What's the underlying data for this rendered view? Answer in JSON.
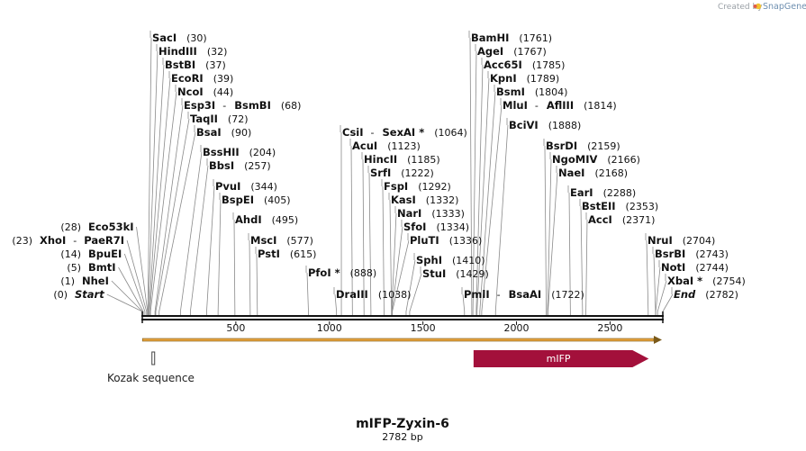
{
  "credit": {
    "prefix": "Created by",
    "brand": "SnapGene"
  },
  "map": {
    "title": "mIFP-Zyxin-6",
    "length_label": "2782 bp",
    "total_bp": 2782,
    "ticks": [
      500,
      1000,
      1500,
      2000,
      2500
    ]
  },
  "features": {
    "orf": {
      "start": 1,
      "end": 2782,
      "color": "#e8a33d"
    },
    "mifp": {
      "name": "mIFP",
      "start": 1785,
      "end": 2745,
      "color": "#a3103b"
    },
    "kozak": {
      "name": "Kozak sequence",
      "start": 42,
      "end": 50
    }
  },
  "sites_left": [
    {
      "name": "Start",
      "pos": 0,
      "italic": true
    },
    {
      "name": "NheI",
      "pos": 1
    },
    {
      "name": "BmtI",
      "pos": 5
    },
    {
      "name": "BpuEI",
      "pos": 14
    },
    {
      "name": "XhoI",
      "name2": "PaeR7I",
      "pos": 23
    },
    {
      "name": "Eco53kI",
      "pos": 28
    }
  ],
  "sites_right": [
    {
      "name": "SacI",
      "pos": 30
    },
    {
      "name": "HindIII",
      "pos": 32
    },
    {
      "name": "BstBI",
      "pos": 37
    },
    {
      "name": "EcoRI",
      "pos": 39
    },
    {
      "name": "NcoI",
      "pos": 44
    },
    {
      "name": "Esp3I",
      "name2": "BsmBI",
      "pos": 68
    },
    {
      "name": "TaqII",
      "pos": 72
    },
    {
      "name": "BsaI",
      "pos": 90
    },
    {
      "name": "BssHII",
      "pos": 204
    },
    {
      "name": "BbsI",
      "pos": 257
    },
    {
      "name": "PvuI",
      "pos": 344
    },
    {
      "name": "BspEI",
      "pos": 405
    },
    {
      "name": "AhdI",
      "pos": 495
    },
    {
      "name": "MscI",
      "pos": 577
    },
    {
      "name": "PstI",
      "pos": 615
    },
    {
      "name": "PfoI *",
      "pos": 888
    },
    {
      "name": "DraIII",
      "pos": 1038
    },
    {
      "name": "CsiI",
      "name2": "SexAI *",
      "pos": 1064
    },
    {
      "name": "AcuI",
      "pos": 1123
    },
    {
      "name": "HincII",
      "pos": 1185
    },
    {
      "name": "SrfI",
      "pos": 1222
    },
    {
      "name": "FspI",
      "pos": 1292
    },
    {
      "name": "KasI",
      "pos": 1332
    },
    {
      "name": "NarI",
      "pos": 1333
    },
    {
      "name": "SfoI",
      "pos": 1334
    },
    {
      "name": "PluTI",
      "pos": 1336
    },
    {
      "name": "SphI",
      "pos": 1410
    },
    {
      "name": "StuI",
      "pos": 1429
    },
    {
      "name": "PmlI",
      "name2": "BsaAI",
      "pos": 1722
    },
    {
      "name": "BamHI",
      "pos": 1761
    },
    {
      "name": "AgeI",
      "pos": 1767
    },
    {
      "name": "Acc65I",
      "pos": 1785
    },
    {
      "name": "KpnI",
      "pos": 1789
    },
    {
      "name": "BsmI",
      "pos": 1804
    },
    {
      "name": "MluI",
      "name2": "AflIII",
      "pos": 1814
    },
    {
      "name": "BciVI",
      "pos": 1888
    },
    {
      "name": "BsrDI",
      "pos": 2159
    },
    {
      "name": "NgoMIV",
      "pos": 2166
    },
    {
      "name": "NaeI",
      "pos": 2168
    },
    {
      "name": "EarI",
      "pos": 2288
    },
    {
      "name": "BstEII",
      "pos": 2353
    },
    {
      "name": "AccI",
      "pos": 2371
    },
    {
      "name": "NruI",
      "pos": 2704
    },
    {
      "name": "BsrBI",
      "pos": 2743
    },
    {
      "name": "NotI",
      "pos": 2744
    },
    {
      "name": "XbaI *",
      "pos": 2754
    },
    {
      "name": "End",
      "pos": 2782,
      "italic": true
    }
  ]
}
